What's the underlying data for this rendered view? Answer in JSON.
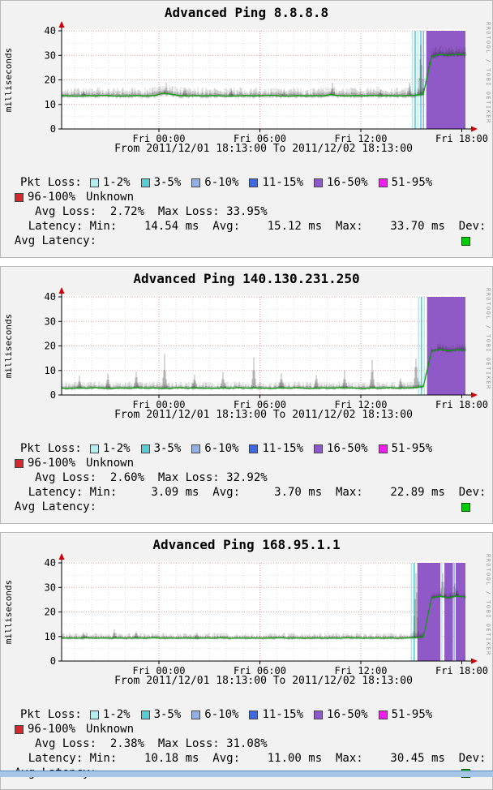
{
  "page": {
    "watermark": "RRDTOOL / TOBI OETIKER"
  },
  "colors": {
    "median_line": "#00a400",
    "loss_region": "#9059c8",
    "avg_latency_swatch": "#00cc00",
    "grid_major": "#dc8c8c",
    "axis_arrow": "#d40000",
    "bottom_bar": "#a6c6e8"
  },
  "legend": {
    "title": "Pkt Loss:",
    "row1": [
      {
        "label": "1-2%",
        "color": "#b7ecec"
      },
      {
        "label": "3-5%",
        "color": "#59ccd4"
      },
      {
        "label": "6-10%",
        "color": "#93aee8"
      },
      {
        "label": "11-15%",
        "color": "#4169d9"
      },
      {
        "label": "16-50%",
        "color": "#9059c8"
      },
      {
        "label": "51-95%",
        "color": "#ee22ee"
      }
    ],
    "row2": [
      {
        "label": "96-100%",
        "color": "#d42727"
      },
      {
        "label": "Unknown",
        "color": "none"
      }
    ]
  },
  "chart_data": [
    {
      "type": "line",
      "title": "Advanced Ping 8.8.8.8",
      "ylabel": "milliseconds",
      "ylim": [
        0,
        40
      ],
      "y_ticks": [
        0,
        10,
        20,
        30,
        40
      ],
      "x_ticks": [
        {
          "pos": 0.241,
          "label": "Fri 00:00"
        },
        {
          "pos": 0.491,
          "label": "Fri 06:00"
        },
        {
          "pos": 0.741,
          "label": "Fri 12:00"
        },
        {
          "pos": 0.991,
          "label": "Fri 18:00"
        }
      ],
      "time_range_label": "From 2011/12/01 18:13:00 To 2011/12/02 18:13:00",
      "median_ms": [
        13.6,
        13.5,
        13.4,
        13.6,
        13.5,
        13.7,
        13.5,
        13.4,
        13.5,
        13.6,
        13.5,
        13.6,
        14.5,
        14.2,
        13.6,
        13.5,
        13.6,
        13.5,
        13.6,
        13.5,
        13.4,
        13.5,
        13.6,
        13.5,
        13.6,
        13.7,
        13.5,
        13.4,
        13.6,
        13.5,
        13.6,
        13.5,
        14.0,
        13.6,
        13.5,
        13.6,
        13.5,
        13.7,
        13.5,
        13.6,
        13.5,
        13.6,
        13.7,
        14.2,
        29.5,
        30.4,
        30.0,
        30.5,
        30.2
      ],
      "smoke": {
        "up_ms": 2.3,
        "down_ms": 0.9,
        "spikes": [
          {
            "x": 0.055,
            "peak_ms": 16
          },
          {
            "x": 0.26,
            "peak_ms": 19
          },
          {
            "x": 0.305,
            "peak_ms": 17
          },
          {
            "x": 0.42,
            "peak_ms": 17
          },
          {
            "x": 0.55,
            "peak_ms": 16
          },
          {
            "x": 0.67,
            "peak_ms": 19
          },
          {
            "x": 0.79,
            "peak_ms": 16
          },
          {
            "x": 0.862,
            "peak_ms": 20
          },
          {
            "x": 0.889,
            "peak_ms": 40
          }
        ]
      },
      "loss_events": {
        "lines": [
          {
            "x": 0.869,
            "color": "#b7ecec"
          },
          {
            "x": 0.8755,
            "color": "#59ccd4"
          },
          {
            "x": 0.8825,
            "color": "#b7ecec"
          },
          {
            "x": 0.8895,
            "color": "#59ccd4"
          },
          {
            "x": 0.896,
            "color": "#93aee8"
          }
        ],
        "regions": [
          {
            "start": 0.903,
            "end": 1.0
          }
        ]
      },
      "stats": {
        "loss_line": "     Avg Loss:  2.72%  Max Loss: 33.95%",
        "latency_line": "    Latency: Min:    14.54 ms  Avg:    15.12 ms  Max:    33.70 ms  Dev:",
        "avg_latency_label": "  Avg Latency:"
      }
    },
    {
      "type": "line",
      "title": "Advanced Ping 140.130.231.250",
      "ylabel": "milliseconds",
      "ylim": [
        0,
        40
      ],
      "y_ticks": [
        0,
        10,
        20,
        30,
        40
      ],
      "x_ticks": [
        {
          "pos": 0.241,
          "label": "Fri 00:00"
        },
        {
          "pos": 0.491,
          "label": "Fri 06:00"
        },
        {
          "pos": 0.741,
          "label": "Fri 12:00"
        },
        {
          "pos": 0.991,
          "label": "Fri 18:00"
        }
      ],
      "time_range_label": "From 2011/12/01 18:13:00 To 2011/12/02 18:13:00",
      "median_ms": [
        2.8,
        2.7,
        2.9,
        2.8,
        3.0,
        2.8,
        2.7,
        2.9,
        2.8,
        3.0,
        2.8,
        2.9,
        2.7,
        2.8,
        3.0,
        2.8,
        2.9,
        2.8,
        2.7,
        2.9,
        2.8,
        3.0,
        2.8,
        2.9,
        2.8,
        2.7,
        2.9,
        2.8,
        3.0,
        2.8,
        2.7,
        2.9,
        2.8,
        3.0,
        2.9,
        2.8,
        2.7,
        2.9,
        2.8,
        3.0,
        2.8,
        2.9,
        3.0,
        3.5,
        18.0,
        18.6,
        17.9,
        18.5,
        18.2
      ],
      "smoke": {
        "up_ms": 1.6,
        "down_ms": 0.7,
        "spikes": [
          {
            "x": 0.045,
            "peak_ms": 8
          },
          {
            "x": 0.115,
            "peak_ms": 9
          },
          {
            "x": 0.185,
            "peak_ms": 10
          },
          {
            "x": 0.255,
            "peak_ms": 17
          },
          {
            "x": 0.33,
            "peak_ms": 9
          },
          {
            "x": 0.4,
            "peak_ms": 10
          },
          {
            "x": 0.475,
            "peak_ms": 16
          },
          {
            "x": 0.545,
            "peak_ms": 10
          },
          {
            "x": 0.63,
            "peak_ms": 9
          },
          {
            "x": 0.7,
            "peak_ms": 10
          },
          {
            "x": 0.77,
            "peak_ms": 16
          },
          {
            "x": 0.84,
            "peak_ms": 8
          },
          {
            "x": 0.878,
            "peak_ms": 17
          }
        ]
      },
      "loss_events": {
        "lines": [
          {
            "x": 0.884,
            "color": "#b7ecec"
          },
          {
            "x": 0.891,
            "color": "#59ccd4"
          },
          {
            "x": 0.898,
            "color": "#b7ecec"
          }
        ],
        "regions": [
          {
            "start": 0.905,
            "end": 1.0
          }
        ]
      },
      "stats": {
        "loss_line": "     Avg Loss:  2.60%  Max Loss: 32.92%",
        "latency_line": "    Latency: Min:     3.09 ms  Avg:     3.70 ms  Max:    22.89 ms  Dev:",
        "avg_latency_label": "  Avg Latency:"
      }
    },
    {
      "type": "line",
      "title": "Advanced Ping 168.95.1.1",
      "ylabel": "milliseconds",
      "ylim": [
        0,
        40
      ],
      "y_ticks": [
        0,
        10,
        20,
        30,
        40
      ],
      "x_ticks": [
        {
          "pos": 0.241,
          "label": "Fri 00:00"
        },
        {
          "pos": 0.491,
          "label": "Fri 06:00"
        },
        {
          "pos": 0.741,
          "label": "Fri 12:00"
        },
        {
          "pos": 0.991,
          "label": "Fri 18:00"
        }
      ],
      "time_range_label": "From 2011/12/01 18:13:00 To 2011/12/02 18:13:00",
      "median_ms": [
        9.3,
        9.4,
        9.3,
        9.5,
        9.3,
        9.4,
        9.3,
        9.4,
        9.3,
        9.4,
        9.3,
        9.5,
        9.3,
        9.4,
        9.3,
        9.4,
        9.3,
        9.4,
        9.3,
        9.5,
        9.3,
        9.4,
        9.3,
        9.4,
        9.3,
        9.4,
        9.5,
        9.3,
        9.4,
        9.3,
        9.4,
        9.3,
        9.4,
        9.3,
        9.5,
        9.4,
        9.3,
        9.4,
        9.3,
        9.4,
        9.3,
        9.4,
        9.5,
        9.8,
        25.8,
        26.4,
        25.7,
        26.6,
        26.0
      ],
      "smoke": {
        "up_ms": 1.4,
        "down_ms": 0.6,
        "spikes": [
          {
            "x": 0.055,
            "peak_ms": 12
          },
          {
            "x": 0.13,
            "peak_ms": 13
          },
          {
            "x": 0.185,
            "peak_ms": 12.5
          },
          {
            "x": 0.335,
            "peak_ms": 12
          },
          {
            "x": 0.877,
            "peak_ms": 40
          },
          {
            "x": 0.944,
            "peak_ms": 38
          },
          {
            "x": 0.973,
            "peak_ms": 33
          }
        ]
      },
      "loss_events": {
        "lines": [
          {
            "x": 0.866,
            "color": "#b7ecec"
          },
          {
            "x": 0.873,
            "color": "#59ccd4"
          },
          {
            "x": 0.9417,
            "color": "#b7ecec"
          },
          {
            "x": 0.972,
            "color": "#93aee8"
          }
        ],
        "regions": [
          {
            "start": 0.881,
            "end": 0.938
          },
          {
            "start": 0.948,
            "end": 0.969
          },
          {
            "start": 0.976,
            "end": 1.0
          }
        ]
      },
      "stats": {
        "loss_line": "     Avg Loss:  2.38%  Max Loss: 31.08%",
        "latency_line": "    Latency: Min:    10.18 ms  Avg:    11.00 ms  Max:    30.45 ms  Dev:",
        "avg_latency_label": "  Avg Latency:"
      }
    }
  ]
}
